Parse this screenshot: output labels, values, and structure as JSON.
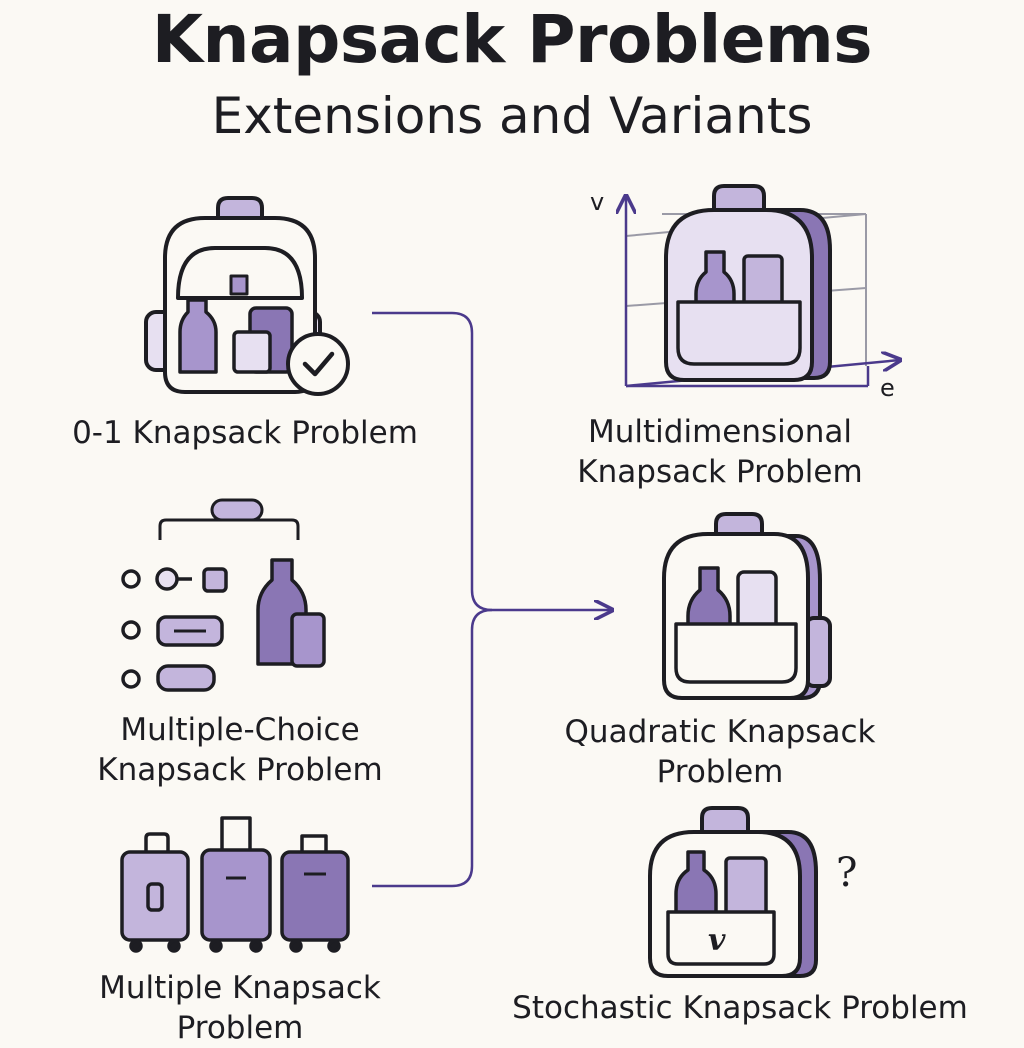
{
  "title": "Knapsack Problems",
  "subtitle": "Extensions and Variants",
  "variants": {
    "zero_one": {
      "label": "0-1 Knapsack Problem"
    },
    "multiple_choice": {
      "label_line1": "Multiple-Choice",
      "label_line2": "Knapsack Problem"
    },
    "multiple": {
      "label_line1": "Multiple Knapsack",
      "label_line2": "Problem"
    },
    "multidimensional": {
      "label_line1": "Multidimensional",
      "label_line2": "Knapsack Problem",
      "axis_v": "v",
      "axis_e": "e"
    },
    "quadratic": {
      "label_line1": "Quadratic Knapsack",
      "label_line2": "Problem"
    },
    "stochastic": {
      "label": "Stochastic Knapsack Problem",
      "mark": "?",
      "symbol": "v"
    }
  },
  "colors": {
    "background": "#fbf9f4",
    "outline": "#1d1d22",
    "lavender_light": "#e7e0f1",
    "lavender": "#c3b5dc",
    "lavender_mid": "#a795cc",
    "purple": "#8a76b4",
    "connector": "#4b3a8c"
  }
}
